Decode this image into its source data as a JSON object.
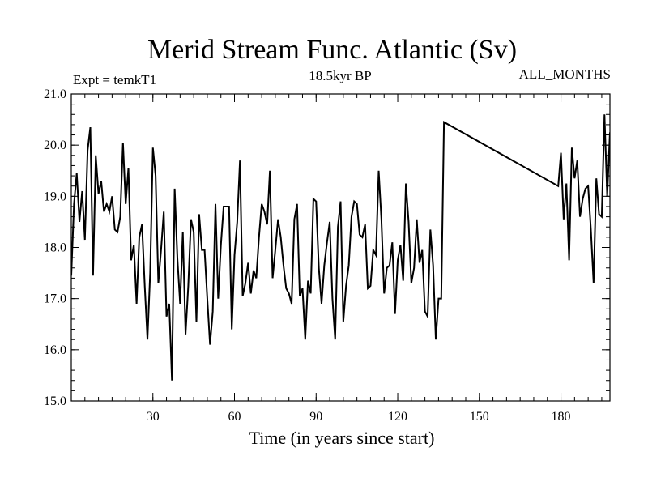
{
  "chart_data": {
    "type": "line",
    "title": "Merid Stream Func. Atlantic (Sv)",
    "subtitle_left": "Expt = temkT1",
    "subtitle_center": "18.5kyr BP",
    "subtitle_right": "ALL_MONTHS",
    "xlabel": "Time (in years since start)",
    "ylabel": "",
    "xlim": [
      0,
      198
    ],
    "ylim": [
      15.0,
      21.0
    ],
    "x_major_ticks": [
      30,
      60,
      90,
      120,
      150,
      180
    ],
    "x_tick_labels": [
      "30",
      "60",
      "90",
      "120",
      "150",
      "180"
    ],
    "x_minor_step": 5,
    "y_major_ticks": [
      15.0,
      16.0,
      17.0,
      18.0,
      19.0,
      20.0,
      21.0
    ],
    "y_tick_labels": [
      "15.0",
      "16.0",
      "17.0",
      "18.0",
      "19.0",
      "20.0",
      "21.0"
    ],
    "y_minor_step": 0.2,
    "grid": false,
    "line_color": "#000000",
    "series": [
      {
        "x": [
          0,
          1,
          2,
          3,
          4,
          5,
          6,
          7,
          8,
          9,
          10,
          11,
          12,
          13,
          14,
          15,
          16,
          17,
          18,
          19,
          20,
          21,
          22,
          23,
          24,
          25,
          26,
          27,
          28,
          29,
          30,
          31,
          32,
          33,
          34,
          35,
          36,
          37,
          38,
          39,
          40,
          41,
          42,
          43,
          44,
          45,
          46,
          47,
          48,
          49,
          50,
          51,
          52,
          53,
          54,
          55,
          56,
          57,
          58,
          59,
          60,
          61,
          62,
          63,
          64,
          65,
          66,
          67,
          68,
          69,
          70,
          71,
          72,
          73,
          74,
          75,
          76,
          77,
          78,
          79,
          80,
          81,
          82,
          83,
          84,
          85,
          86,
          87,
          88,
          89,
          90,
          91,
          92,
          93,
          94,
          95,
          96,
          97,
          98,
          99,
          100,
          101,
          102,
          103,
          104,
          105,
          106,
          107,
          108,
          109,
          110,
          111,
          112,
          113,
          114,
          115,
          116,
          117,
          118,
          119,
          120,
          121,
          122,
          123,
          124,
          125,
          126,
          127,
          128,
          129,
          130,
          131,
          132,
          133,
          134,
          135,
          136,
          137,
          179,
          180,
          181,
          182,
          183,
          184,
          185,
          186,
          187,
          188,
          189,
          190,
          191,
          192,
          193,
          194,
          195,
          196,
          197,
          198
        ],
        "values": [
          17.45,
          18.85,
          19.45,
          18.5,
          19.1,
          18.15,
          19.9,
          20.35,
          17.45,
          19.8,
          19.05,
          19.3,
          18.7,
          18.85,
          18.7,
          19.0,
          18.35,
          18.3,
          18.6,
          20.05,
          18.85,
          19.55,
          17.75,
          18.05,
          16.9,
          18.2,
          18.45,
          17.25,
          16.2,
          17.5,
          19.95,
          19.4,
          17.3,
          17.95,
          18.7,
          16.65,
          16.9,
          15.4,
          19.15,
          17.8,
          16.9,
          18.3,
          16.3,
          17.25,
          18.55,
          18.3,
          16.55,
          18.65,
          17.95,
          17.95,
          17.0,
          16.1,
          16.75,
          18.85,
          17.0,
          18.05,
          18.8,
          18.8,
          18.8,
          16.4,
          17.85,
          18.5,
          19.7,
          17.05,
          17.3,
          17.7,
          17.1,
          17.55,
          17.4,
          18.2,
          18.85,
          18.7,
          18.45,
          19.5,
          17.4,
          17.95,
          18.55,
          18.2,
          17.65,
          17.2,
          17.1,
          16.9,
          18.55,
          18.85,
          17.05,
          17.2,
          16.2,
          17.35,
          17.1,
          18.95,
          18.9,
          17.6,
          16.9,
          17.65,
          18.1,
          18.5,
          17.0,
          16.2,
          18.4,
          18.9,
          16.55,
          17.25,
          17.65,
          18.6,
          18.9,
          18.85,
          18.25,
          18.2,
          18.45,
          17.2,
          17.25,
          17.95,
          17.85,
          19.5,
          18.55,
          17.1,
          17.6,
          17.65,
          18.1,
          16.7,
          17.75,
          18.05,
          17.35,
          19.25,
          18.5,
          17.3,
          17.6,
          18.55,
          17.7,
          17.95,
          16.75,
          16.65,
          18.35,
          17.65,
          16.2,
          17.0,
          17.0,
          20.45,
          19.2,
          19.85,
          18.55,
          19.25,
          17.75,
          19.95,
          19.35,
          19.7,
          18.6,
          18.95,
          19.15,
          19.2,
          18.35,
          17.3,
          19.35,
          18.65,
          18.6,
          20.6,
          19.0,
          20.25
        ]
      }
    ]
  }
}
